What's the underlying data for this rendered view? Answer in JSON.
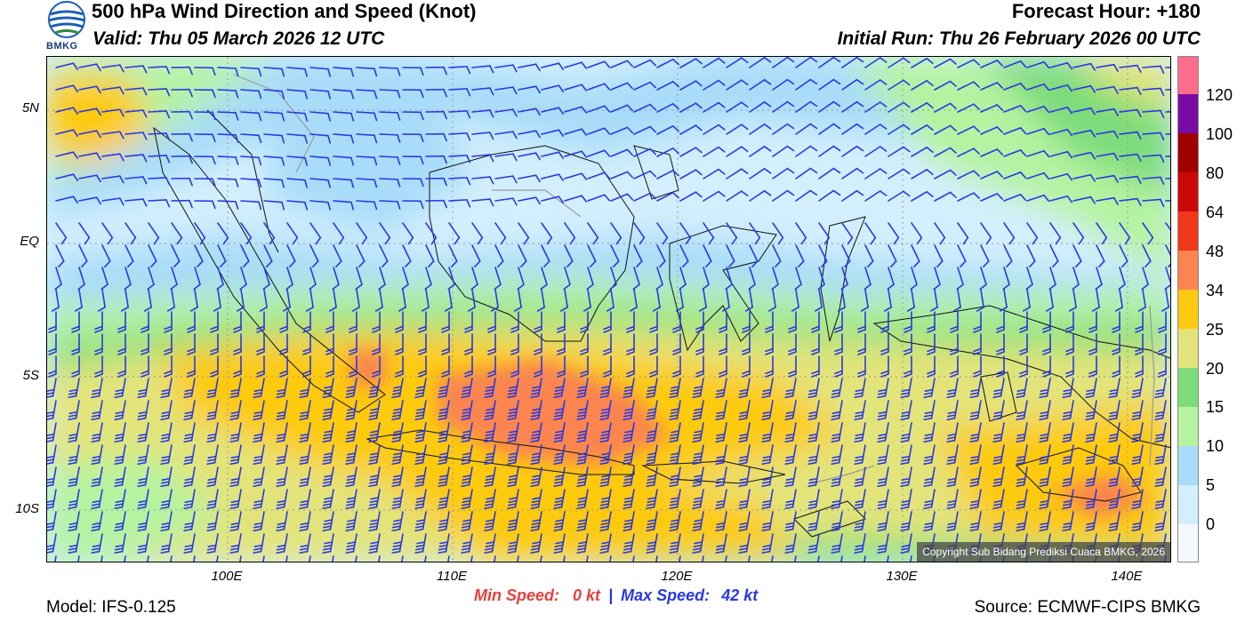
{
  "header": {
    "title": "500 hPa Wind Direction and Speed (Knot)",
    "valid": "Valid: Thu 05 March 2026 12 UTC",
    "forecast_hour": "Forecast Hour: +180",
    "initial_run": "Initial Run: Thu 26 February 2026 00 UTC",
    "logo_text": "BMKG"
  },
  "map": {
    "lat_labels": [
      "5N",
      "EQ",
      "5S",
      "10S"
    ],
    "lon_labels": [
      "100E",
      "110E",
      "120E",
      "130E",
      "140E"
    ],
    "copyright": "Copyright Sub Bidang Prediksi Cuaca BMKG, 2026",
    "extent": {
      "lon_min": 92,
      "lon_max": 142,
      "lat_min": -12,
      "lat_max": 7
    }
  },
  "colorbar": {
    "labels": [
      "0",
      "5",
      "10",
      "15",
      "20",
      "25",
      "34",
      "48",
      "64",
      "80",
      "100",
      "120"
    ],
    "colors": [
      "#f4f9fe",
      "#d3effd",
      "#a8dcf8",
      "#b5f3a0",
      "#7ddc7a",
      "#e2e47a",
      "#fdca0f",
      "#fb8450",
      "#f0381c",
      "#cd0608",
      "#a00000",
      "#7a0aa6",
      "#ff6c8c"
    ]
  },
  "stats": {
    "min_label": "Min Speed:",
    "min_value": "0 kt",
    "separator": "|",
    "max_label": "Max Speed:",
    "max_value": "42 kt"
  },
  "footer": {
    "model": "Model: IFS-0.125",
    "source": "Source: ECMWF-CIPS BMKG"
  }
}
